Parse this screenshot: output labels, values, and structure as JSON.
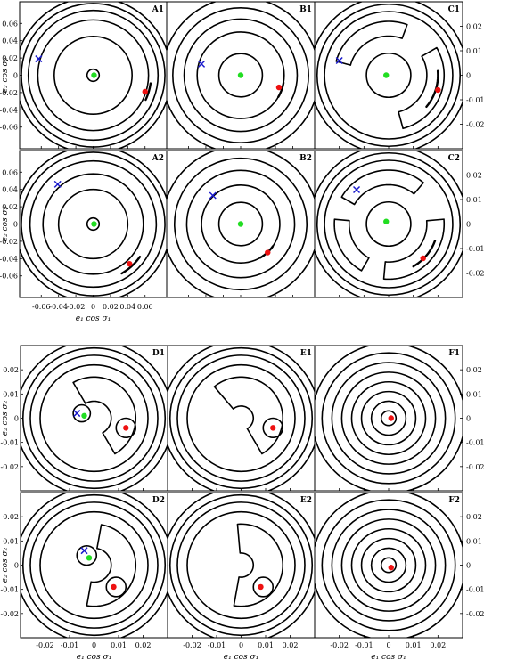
{
  "chart_data": [
    {
      "id": "A1",
      "type": "contour",
      "label": "A1",
      "xlim": [
        -0.085,
        0.085
      ],
      "ylim": [
        -0.085,
        0.085
      ],
      "xticks": [
        -0.06,
        -0.04,
        -0.02,
        0,
        0.02,
        0.04,
        0.06
      ],
      "xticklabels": [
        "-0.06",
        "-0.04",
        "-0.02",
        "0",
        "0.02",
        "0.04",
        "0.06"
      ],
      "yticks": [
        0.06,
        0.04,
        0.02,
        0,
        -0.02,
        -0.04,
        -0.06
      ],
      "yticklabels": [
        "0.06",
        "0.04",
        "0.02",
        "0",
        "-0.02",
        "-0.04",
        "-0.06"
      ],
      "ytick_side": "left",
      "ylabel": "e₂ cos σ₂",
      "xlabel": "",
      "contour_radii": [
        0.007,
        0.045,
        0.064,
        0.075,
        0.083,
        0.09
      ],
      "arcs": [
        {
          "r": 0.067,
          "a0": -25,
          "a1": -8
        }
      ],
      "points": [
        {
          "kind": "green",
          "x": 0.001,
          "y": 0.0
        },
        {
          "kind": "red",
          "x": 0.06,
          "y": -0.019
        },
        {
          "kind": "cross",
          "x": -0.063,
          "y": 0.019
        }
      ]
    },
    {
      "id": "B1",
      "type": "contour",
      "label": "B1",
      "xlim": [
        -0.085,
        0.085
      ],
      "ylim": [
        -0.085,
        0.085
      ],
      "xticks": [
        -0.06,
        -0.04,
        -0.02,
        0,
        0.02,
        0.04,
        0.06
      ],
      "xticklabels": [
        "-0.06",
        "-0.04",
        "-0.02",
        "0",
        "0.02",
        "0.04",
        "0.06"
      ],
      "yticks": [],
      "yticklabels": [],
      "ytick_side": "none",
      "ylabel": "",
      "xlabel": "",
      "contour_radii": [
        0.025,
        0.05,
        0.065,
        0.078,
        0.09
      ],
      "arcs": [
        {
          "r": 0.05,
          "a0": -30,
          "a1": -10
        }
      ],
      "points": [
        {
          "kind": "green",
          "x": 0.0,
          "y": 0.0
        },
        {
          "kind": "red",
          "x": 0.044,
          "y": -0.014
        },
        {
          "kind": "cross",
          "x": -0.045,
          "y": 0.013
        }
      ]
    },
    {
      "id": "C1",
      "type": "contour",
      "label": "C1",
      "xlim": [
        -0.03,
        0.03
      ],
      "ylim": [
        -0.03,
        0.03
      ],
      "xticks": [
        -0.02,
        -0.01,
        0,
        0.01,
        0.02
      ],
      "xticklabels": [
        "-0.02",
        "-0.01",
        "0",
        "0.01",
        "0.02"
      ],
      "yticks": [
        0.02,
        0.01,
        0,
        -0.01,
        -0.02
      ],
      "yticklabels": [
        "0.02",
        "0.01",
        "0",
        "-0.01",
        "-0.02"
      ],
      "ytick_side": "right",
      "ylabel": "",
      "xlabel": "",
      "contour_radii": [
        0.009,
        0.026,
        0.029,
        0.032
      ],
      "arcs": [
        {
          "r": 0.02,
          "a0": -40,
          "a1": 5
        }
      ],
      "lobes": [
        {
          "r": 0.019,
          "a0": -75,
          "a1": 30,
          "w": 0.0035
        },
        {
          "r": 0.019,
          "a0": 70,
          "a1": 165,
          "w": 0.003
        }
      ],
      "points": [
        {
          "kind": "green",
          "x": -0.001,
          "y": 0.0
        },
        {
          "kind": "red",
          "x": 0.02,
          "y": -0.006
        },
        {
          "kind": "cross",
          "x": -0.02,
          "y": 0.006
        }
      ]
    },
    {
      "id": "A2",
      "type": "contour",
      "label": "A2",
      "xlim": [
        -0.085,
        0.085
      ],
      "ylim": [
        -0.085,
        0.085
      ],
      "xticks": [
        -0.06,
        -0.04,
        -0.02,
        0,
        0.02,
        0.04,
        0.06
      ],
      "xticklabels": [
        "-0.06",
        "-0.04",
        "-0.02",
        "0",
        "0.02",
        "0.04",
        "0.06"
      ],
      "yticks": [
        0.06,
        0.04,
        0.02,
        0,
        -0.02,
        -0.04,
        -0.06
      ],
      "yticklabels": [
        "0.06",
        "0.04",
        "0.02",
        "0",
        "-0.02",
        "-0.04",
        "-0.06"
      ],
      "ytick_side": "left",
      "ylabel": "e₂ cos σ₂",
      "xlabel": "",
      "contour_radii": [
        0.007,
        0.04,
        0.058,
        0.073,
        0.083,
        0.09
      ],
      "arcs": [
        {
          "r": 0.066,
          "a0": -60,
          "a1": -35
        }
      ],
      "points": [
        {
          "kind": "green",
          "x": 0.001,
          "y": 0.0
        },
        {
          "kind": "red",
          "x": 0.042,
          "y": -0.046
        },
        {
          "kind": "cross",
          "x": -0.041,
          "y": 0.046
        }
      ]
    },
    {
      "id": "B2",
      "type": "contour",
      "label": "B2",
      "xlim": [
        -0.085,
        0.085
      ],
      "ylim": [
        -0.085,
        0.085
      ],
      "xticks": [
        -0.06,
        -0.04,
        -0.02,
        0,
        0.02,
        0.04,
        0.06
      ],
      "xticklabels": [
        "-0.06",
        "-0.04",
        "-0.02",
        "0",
        "0.02",
        "0.04",
        "0.06"
      ],
      "yticks": [],
      "yticklabels": [],
      "ytick_side": "none",
      "ylabel": "",
      "xlabel": "",
      "contour_radii": [
        0.025,
        0.045,
        0.062,
        0.076,
        0.09
      ],
      "arcs": [
        {
          "r": 0.045,
          "a0": -60,
          "a1": -35
        }
      ],
      "points": [
        {
          "kind": "green",
          "x": 0.0,
          "y": 0.0
        },
        {
          "kind": "red",
          "x": 0.031,
          "y": -0.033
        },
        {
          "kind": "cross",
          "x": -0.032,
          "y": 0.033
        }
      ]
    },
    {
      "id": "C2",
      "type": "contour",
      "label": "C2",
      "xlim": [
        -0.03,
        0.03
      ],
      "ylim": [
        -0.03,
        0.03
      ],
      "xticks": [
        -0.02,
        -0.01,
        0,
        0.01,
        0.02
      ],
      "xticklabels": [
        "-0.02",
        "-0.01",
        "0",
        "0.01",
        "0.02"
      ],
      "yticks": [
        0.02,
        0.01,
        0,
        -0.01,
        -0.02
      ],
      "yticklabels": [
        "0.02",
        "0.01",
        "0",
        "-0.01",
        "-0.02"
      ],
      "ytick_side": "right",
      "ylabel": "",
      "xlabel": "",
      "contour_radii": [
        0.009,
        0.026,
        0.029,
        0.032
      ],
      "arcs": [
        {
          "r": 0.02,
          "a0": -60,
          "a1": -20
        }
      ],
      "lobes": [
        {
          "r": 0.019,
          "a0": -95,
          "a1": 5,
          "w": 0.0035
        },
        {
          "r": 0.019,
          "a0": 50,
          "a1": 150,
          "w": 0.003
        },
        {
          "r": 0.019,
          "a0": 175,
          "a1": 240,
          "w": 0.003
        }
      ],
      "points": [
        {
          "kind": "green",
          "x": -0.001,
          "y": 0.001
        },
        {
          "kind": "red",
          "x": 0.014,
          "y": -0.014
        },
        {
          "kind": "cross",
          "x": -0.013,
          "y": 0.014
        }
      ]
    },
    {
      "id": "A3",
      "type": "contour",
      "label": "",
      "xlim": [
        -0.085,
        0.085
      ],
      "ylim": [
        -0.085,
        0.085
      ],
      "xticks": [
        -0.06,
        -0.04,
        -0.02,
        0,
        0.02,
        0.04,
        0.06
      ],
      "xticklabels": [
        "-0.06",
        "-0.04",
        "-0.02",
        "0",
        "0.02",
        "0.04",
        "0.06"
      ],
      "yticks": [],
      "yticklabels": [],
      "ytick_side": "none",
      "ylabel": "",
      "xlabel": "e₁ cos σ₁",
      "contour_radii": [],
      "arcs": [],
      "points": [],
      "axis_only": true
    },
    {
      "id": "D1",
      "type": "contour",
      "label": "D1",
      "xlim": [
        -0.03,
        0.03
      ],
      "ylim": [
        -0.03,
        0.03
      ],
      "xticks": [
        -0.02,
        -0.01,
        0,
        0.01,
        0.02
      ],
      "xticklabels": [
        "-0.02",
        "-0.01",
        "0",
        "0.01",
        "0.02"
      ],
      "yticks": [
        0.02,
        0.01,
        0,
        -0.01,
        -0.02
      ],
      "yticklabels": [
        "0.02",
        "0.01",
        "0",
        "-0.01",
        "-0.02"
      ],
      "ytick_side": "left",
      "ylabel": "e₂ cos σ₂",
      "xlabel": "",
      "contour_radii": [
        0.022,
        0.026,
        0.029,
        0.032
      ],
      "lobes": [
        {
          "r": 0.012,
          "a0": -60,
          "a1": 120,
          "w": 0.005
        }
      ],
      "smallrings": [
        {
          "x": -0.005,
          "y": 0.002,
          "r": 0.0035
        },
        {
          "x": 0.013,
          "y": -0.004,
          "r": 0.004
        }
      ],
      "arcs": [],
      "points": [
        {
          "kind": "green",
          "x": -0.004,
          "y": 0.001
        },
        {
          "kind": "red",
          "x": 0.013,
          "y": -0.004
        },
        {
          "kind": "cross",
          "x": -0.007,
          "y": 0.002
        }
      ]
    },
    {
      "id": "E1",
      "type": "contour",
      "label": "E1",
      "xlim": [
        -0.03,
        0.03
      ],
      "ylim": [
        -0.03,
        0.03
      ],
      "xticks": [
        -0.02,
        -0.01,
        0,
        0.01,
        0.02
      ],
      "xticklabels": [
        "-0.02",
        "-0.01",
        "0",
        "0.01",
        "0.02"
      ],
      "yticks": [],
      "yticklabels": [],
      "ytick_side": "none",
      "ylabel": "",
      "xlabel": "",
      "contour_radii": [
        0.022,
        0.026,
        0.029,
        0.032
      ],
      "lobes": [
        {
          "r": 0.011,
          "a0": -60,
          "a1": 130,
          "w": 0.006
        }
      ],
      "smallrings": [
        {
          "x": 0.013,
          "y": -0.004,
          "r": 0.004
        }
      ],
      "arcs": [],
      "points": [
        {
          "kind": "red",
          "x": 0.013,
          "y": -0.004
        }
      ]
    },
    {
      "id": "F1",
      "type": "contour",
      "label": "F1",
      "xlim": [
        -0.03,
        0.03
      ],
      "ylim": [
        -0.03,
        0.03
      ],
      "xticks": [
        -0.02,
        -0.01,
        0,
        0.01,
        0.02
      ],
      "xticklabels": [
        "-0.02",
        "-0.01",
        "0",
        "0.01",
        "0.02"
      ],
      "yticks": [
        0.02,
        0.01,
        0,
        -0.01,
        -0.02
      ],
      "yticklabels": [
        "0.02",
        "0.01",
        "0",
        "-0.01",
        "-0.02"
      ],
      "ytick_side": "right",
      "ylabel": "",
      "xlabel": "",
      "contour_radii": [
        0.003,
        0.007,
        0.011,
        0.015,
        0.019,
        0.023,
        0.027,
        0.031
      ],
      "arcs": [],
      "points": [
        {
          "kind": "red",
          "x": 0.001,
          "y": 0.0
        }
      ]
    },
    {
      "id": "D2",
      "type": "contour",
      "label": "D2",
      "xlim": [
        -0.03,
        0.03
      ],
      "ylim": [
        -0.03,
        0.03
      ],
      "xticks": [
        -0.02,
        -0.01,
        0,
        0.01,
        0.02
      ],
      "xticklabels": [
        "-0.02",
        "-0.01",
        "0",
        "0.01",
        "0.02"
      ],
      "yticks": [
        0.02,
        0.01,
        0,
        -0.01,
        -0.02
      ],
      "yticklabels": [
        "0.02",
        "0.01",
        "0",
        "-0.01",
        "-0.02"
      ],
      "ytick_side": "left",
      "ylabel": "e₂ cos σ₂",
      "xlabel": "e₁ cos σ₁",
      "contour_radii": [
        0.022,
        0.026,
        0.029,
        0.032
      ],
      "lobes": [
        {
          "r": 0.012,
          "a0": -100,
          "a1": 80,
          "w": 0.005
        }
      ],
      "smallrings": [
        {
          "x": -0.003,
          "y": 0.004,
          "r": 0.004
        },
        {
          "x": 0.009,
          "y": -0.009,
          "r": 0.004
        }
      ],
      "arcs": [],
      "points": [
        {
          "kind": "green",
          "x": -0.002,
          "y": 0.003
        },
        {
          "kind": "red",
          "x": 0.008,
          "y": -0.009
        },
        {
          "kind": "cross",
          "x": -0.004,
          "y": 0.006
        }
      ]
    },
    {
      "id": "E2",
      "type": "contour",
      "label": "E2",
      "xlim": [
        -0.03,
        0.03
      ],
      "ylim": [
        -0.03,
        0.03
      ],
      "xticks": [
        -0.02,
        -0.01,
        0,
        0.01,
        0.02
      ],
      "xticklabels": [
        "-0.02",
        "-0.01",
        "0",
        "0.01",
        "0.02"
      ],
      "yticks": [],
      "yticklabels": [],
      "ytick_side": "none",
      "ylabel": "",
      "xlabel": "e₁ cos σ₁",
      "contour_radii": [
        0.022,
        0.026,
        0.029,
        0.032
      ],
      "lobes": [
        {
          "r": 0.011,
          "a0": -100,
          "a1": 95,
          "w": 0.006
        }
      ],
      "smallrings": [
        {
          "x": 0.009,
          "y": -0.009,
          "r": 0.004
        }
      ],
      "arcs": [],
      "points": [
        {
          "kind": "red",
          "x": 0.008,
          "y": -0.009
        }
      ]
    },
    {
      "id": "F2",
      "type": "contour",
      "label": "F2",
      "xlim": [
        -0.03,
        0.03
      ],
      "ylim": [
        -0.03,
        0.03
      ],
      "xticks": [
        -0.02,
        -0.01,
        0,
        0.01,
        0.02
      ],
      "xticklabels": [
        "-0.02",
        "-0.01",
        "0",
        "0.01",
        "0.02"
      ],
      "yticks": [
        0.02,
        0.01,
        0,
        -0.01,
        -0.02
      ],
      "yticklabels": [
        "0.02",
        "0.01",
        "0",
        "-0.01",
        "-0.02"
      ],
      "ytick_side": "right",
      "ylabel": "",
      "xlabel": "e₁ cos σ₁",
      "contour_radii": [
        0.003,
        0.007,
        0.011,
        0.015,
        0.019,
        0.023,
        0.027,
        0.031
      ],
      "arcs": [],
      "points": [
        {
          "kind": "red",
          "x": 0.001,
          "y": -0.001
        }
      ]
    }
  ],
  "colors": {
    "green": "#22dd22",
    "red": "#ee1111",
    "cross": "#1a1acc",
    "contour": "#000000"
  }
}
